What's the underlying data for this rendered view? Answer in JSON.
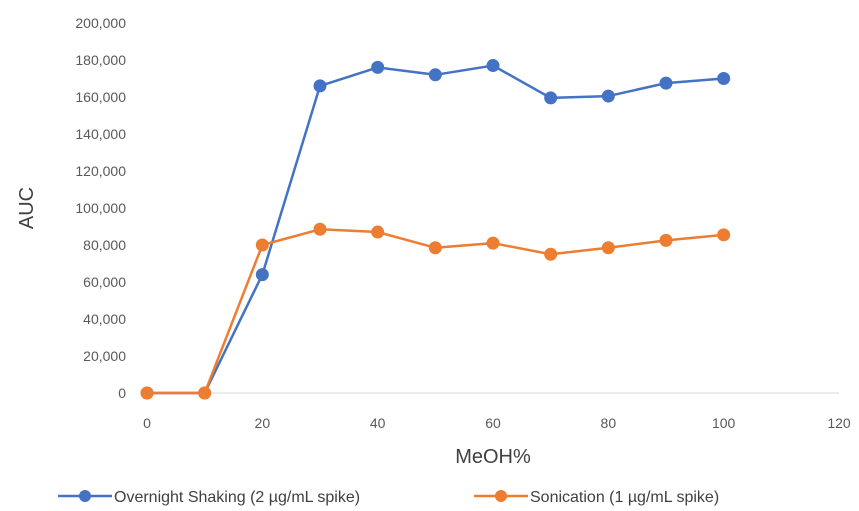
{
  "chart_data": {
    "type": "line",
    "title": "",
    "xlabel": "MeOH%",
    "ylabel": "AUC",
    "xlim": [
      0,
      120
    ],
    "ylim": [
      0,
      200000
    ],
    "xticks": [
      0,
      20,
      40,
      60,
      80,
      100,
      120
    ],
    "xtick_labels": [
      "0",
      "20",
      "40",
      "60",
      "80",
      "100",
      "120"
    ],
    "yticks": [
      0,
      20000,
      40000,
      60000,
      80000,
      100000,
      120000,
      140000,
      160000,
      180000,
      200000
    ],
    "ytick_labels": [
      "0",
      "20,000",
      "40,000",
      "60,000",
      "80,000",
      "100,000",
      "120,000",
      "140,000",
      "160,000",
      "180,000",
      "200,000"
    ],
    "grid": false,
    "legend_position": "bottom",
    "series": [
      {
        "name": "Overnight Shaking (2 µg/mL spike)",
        "color": "#4472C4",
        "x": [
          0,
          10,
          20,
          30,
          40,
          50,
          60,
          70,
          80,
          90,
          100
        ],
        "y": [
          0,
          0,
          64000,
          166000,
          176000,
          172000,
          177000,
          159500,
          160500,
          167500,
          170000
        ]
      },
      {
        "name": "Sonication (1 µg/mL spike)",
        "color": "#ED7D31",
        "x": [
          0,
          10,
          20,
          30,
          40,
          50,
          60,
          70,
          80,
          90,
          100
        ],
        "y": [
          0,
          0,
          80000,
          88500,
          87000,
          78500,
          81000,
          75000,
          78500,
          82500,
          85500
        ]
      }
    ]
  }
}
